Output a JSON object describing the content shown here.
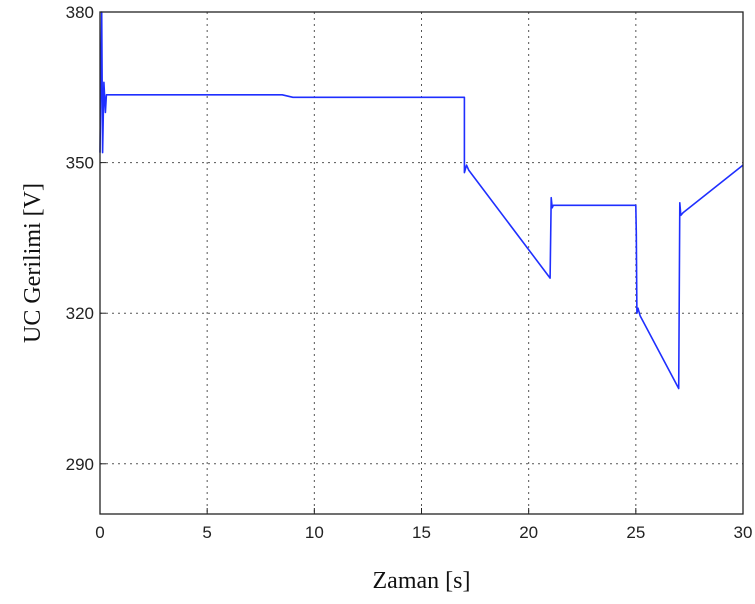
{
  "chart_data": {
    "type": "line",
    "title": "",
    "xlabel": "Zaman [s]",
    "ylabel": "UC Gerilimi [V]",
    "xlim": [
      0,
      30
    ],
    "ylim": [
      280,
      380
    ],
    "xticks": [
      0,
      5,
      10,
      15,
      20,
      25,
      30
    ],
    "yticks": [
      290,
      320,
      350,
      380
    ],
    "grid": true,
    "legend": "none",
    "series": [
      {
        "color": "#1f2fff",
        "x": [
          0,
          0.08,
          0.12,
          0.18,
          0.25,
          0.3,
          8.5,
          9,
          17.0,
          17.0,
          17.1,
          17.2,
          21.0,
          21.05,
          21.1,
          21.15,
          21.2,
          25.0,
          25.02,
          25.05,
          25.1,
          25.2,
          27.0,
          27.05,
          27.1,
          27.2,
          30.0
        ],
        "y": [
          352,
          380,
          352,
          366,
          360,
          363.5,
          363.5,
          363,
          363,
          348,
          349.5,
          348.5,
          327,
          343,
          341,
          341.5,
          341.5,
          341.5,
          336,
          320,
          321,
          319.5,
          305,
          342,
          339.5,
          340,
          349.5
        ]
      }
    ]
  }
}
